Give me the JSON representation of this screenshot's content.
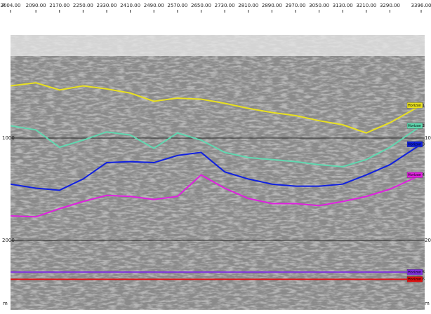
{
  "chart_data": {
    "type": "line",
    "x_axis_label": "P",
    "y_axis_label": "m",
    "x": [
      2004,
      2090,
      2170,
      2250,
      2330,
      2410,
      2490,
      2570,
      2650,
      2730,
      2810,
      2890,
      2970,
      3050,
      3130,
      3210,
      3290,
      3396
    ],
    "xlim": [
      2004,
      3396
    ],
    "xticks": [
      {
        "value": 2004,
        "label": "2004.00"
      },
      {
        "value": 2090,
        "label": "2090.00"
      },
      {
        "value": 2170,
        "label": "2170.00"
      },
      {
        "value": 2250,
        "label": "2250.00"
      },
      {
        "value": 2330,
        "label": "2330.00"
      },
      {
        "value": 2410,
        "label": "2410.00"
      },
      {
        "value": 2490,
        "label": "2490.00"
      },
      {
        "value": 2570,
        "label": "2570.00"
      },
      {
        "value": 2650,
        "label": "2650.00"
      },
      {
        "value": 2730,
        "label": "2730.00"
      },
      {
        "value": 2810,
        "label": "2810.00"
      },
      {
        "value": 2890,
        "label": "2890.00"
      },
      {
        "value": 2970,
        "label": "2970.00"
      },
      {
        "value": 3050,
        "label": "3050.00"
      },
      {
        "value": 3130,
        "label": "3130.00"
      },
      {
        "value": 3210,
        "label": "3210.00"
      },
      {
        "value": 3290,
        "label": "3290.00"
      },
      {
        "value": 3396,
        "label": "3396.00"
      }
    ],
    "ylim": [
      0,
      2660
    ],
    "yticks": [
      1000,
      2000
    ],
    "y_inverted": true,
    "grid": true,
    "series": [
      {
        "name": "Horizon 1",
        "color": "#e8e020",
        "values": [
          490,
          460,
          530,
          490,
          520,
          560,
          640,
          610,
          620,
          660,
          710,
          750,
          780,
          830,
          870,
          950,
          850,
          680
        ]
      },
      {
        "name": "Horizon 2",
        "color": "#60d8b0",
        "values": [
          880,
          920,
          1090,
          1020,
          940,
          970,
          1100,
          950,
          1020,
          1140,
          1190,
          1210,
          1230,
          1260,
          1280,
          1210,
          1090,
          880
        ]
      },
      {
        "name": "Horizon 3",
        "color": "#1020e0",
        "values": [
          1450,
          1490,
          1510,
          1400,
          1240,
          1230,
          1240,
          1170,
          1140,
          1330,
          1400,
          1450,
          1470,
          1470,
          1450,
          1360,
          1260,
          1060
        ]
      },
      {
        "name": "Horizon 4",
        "color": "#e020e0",
        "values": [
          1760,
          1770,
          1690,
          1620,
          1560,
          1570,
          1600,
          1570,
          1360,
          1490,
          1590,
          1640,
          1640,
          1660,
          1620,
          1570,
          1500,
          1360
        ]
      },
      {
        "name": "Horizon 5",
        "color": "#8030e0",
        "values": [
          2310,
          2310,
          2310,
          2310,
          2310,
          2310,
          2310,
          2310,
          2310,
          2310,
          2310,
          2310,
          2310,
          2310,
          2310,
          2310,
          2310,
          2310
        ]
      },
      {
        "name": "Horizon 6",
        "color": "#e01010",
        "values": [
          2380,
          2380,
          2380,
          2380,
          2380,
          2380,
          2380,
          2380,
          2380,
          2380,
          2380,
          2380,
          2380,
          2380,
          2380,
          2380,
          2380,
          2380
        ]
      }
    ]
  }
}
